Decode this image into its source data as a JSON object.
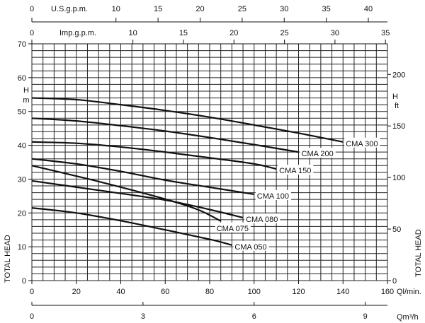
{
  "chart_data": {
    "type": "line",
    "title": "",
    "xlabel": "Ql/min.",
    "ylabel": "TOTAL HEAD",
    "ylabel_unit_left": [
      "H",
      "m"
    ],
    "ylabel_unit_right": [
      "H",
      "ft"
    ],
    "ylabel_right": "TOTAL HEAD",
    "xlim": [
      0,
      160
    ],
    "ylim": [
      0,
      70
    ],
    "grid": true,
    "x_ticks": [
      0,
      20,
      40,
      60,
      80,
      100,
      120,
      140,
      160
    ],
    "y_ticks": [
      0,
      10,
      20,
      30,
      40,
      50,
      60,
      70
    ],
    "right_axis": {
      "unit": "ft",
      "ticks": [
        0,
        50,
        100,
        150,
        200
      ]
    },
    "top_axis_us": {
      "label": "U.S.g.p.m.",
      "ticks": [
        0,
        10,
        15,
        20,
        25,
        30,
        35,
        40
      ]
    },
    "top_axis_imp": {
      "label": "Imp.g.p.m.",
      "ticks": [
        0,
        10,
        15,
        20,
        25,
        30,
        35
      ]
    },
    "bottom_axis_m3h": {
      "label": "Qm³/h",
      "ticks": [
        0,
        3,
        6,
        9
      ]
    },
    "series": [
      {
        "name": "CMA 300",
        "points": [
          [
            0,
            54
          ],
          [
            20,
            53.5
          ],
          [
            40,
            52
          ],
          [
            60,
            50.3
          ],
          [
            80,
            48.3
          ],
          [
            100,
            46
          ],
          [
            120,
            43.6
          ],
          [
            140,
            41
          ]
        ]
      },
      {
        "name": "CMA 200",
        "points": [
          [
            0,
            48
          ],
          [
            20,
            47.2
          ],
          [
            40,
            45.8
          ],
          [
            60,
            44.2
          ],
          [
            80,
            42.3
          ],
          [
            100,
            40.2
          ],
          [
            120,
            38
          ]
        ]
      },
      {
        "name": "CMA 150",
        "points": [
          [
            0,
            41
          ],
          [
            20,
            40.6
          ],
          [
            40,
            39.5
          ],
          [
            60,
            38
          ],
          [
            80,
            36.3
          ],
          [
            100,
            34.5
          ],
          [
            110,
            33
          ]
        ]
      },
      {
        "name": "CMA 100",
        "points": [
          [
            0,
            36
          ],
          [
            20,
            34.5
          ],
          [
            40,
            32.3
          ],
          [
            60,
            29.7
          ],
          [
            80,
            27.6
          ],
          [
            100,
            25.5
          ]
        ]
      },
      {
        "name": "CMA 080",
        "points": [
          [
            0,
            29.5
          ],
          [
            30,
            26.7
          ],
          [
            60,
            23.8
          ],
          [
            80,
            21
          ],
          [
            95,
            18.6
          ]
        ]
      },
      {
        "name": "CMA 075",
        "points": [
          [
            0,
            34
          ],
          [
            30,
            29.3
          ],
          [
            60,
            24.1
          ],
          [
            75,
            20.9
          ],
          [
            85,
            17.6
          ]
        ]
      },
      {
        "name": "CMA 050",
        "points": [
          [
            0,
            21.5
          ],
          [
            20,
            20
          ],
          [
            40,
            17.7
          ],
          [
            60,
            15
          ],
          [
            80,
            12.2
          ],
          [
            90,
            10.5
          ]
        ]
      }
    ]
  }
}
